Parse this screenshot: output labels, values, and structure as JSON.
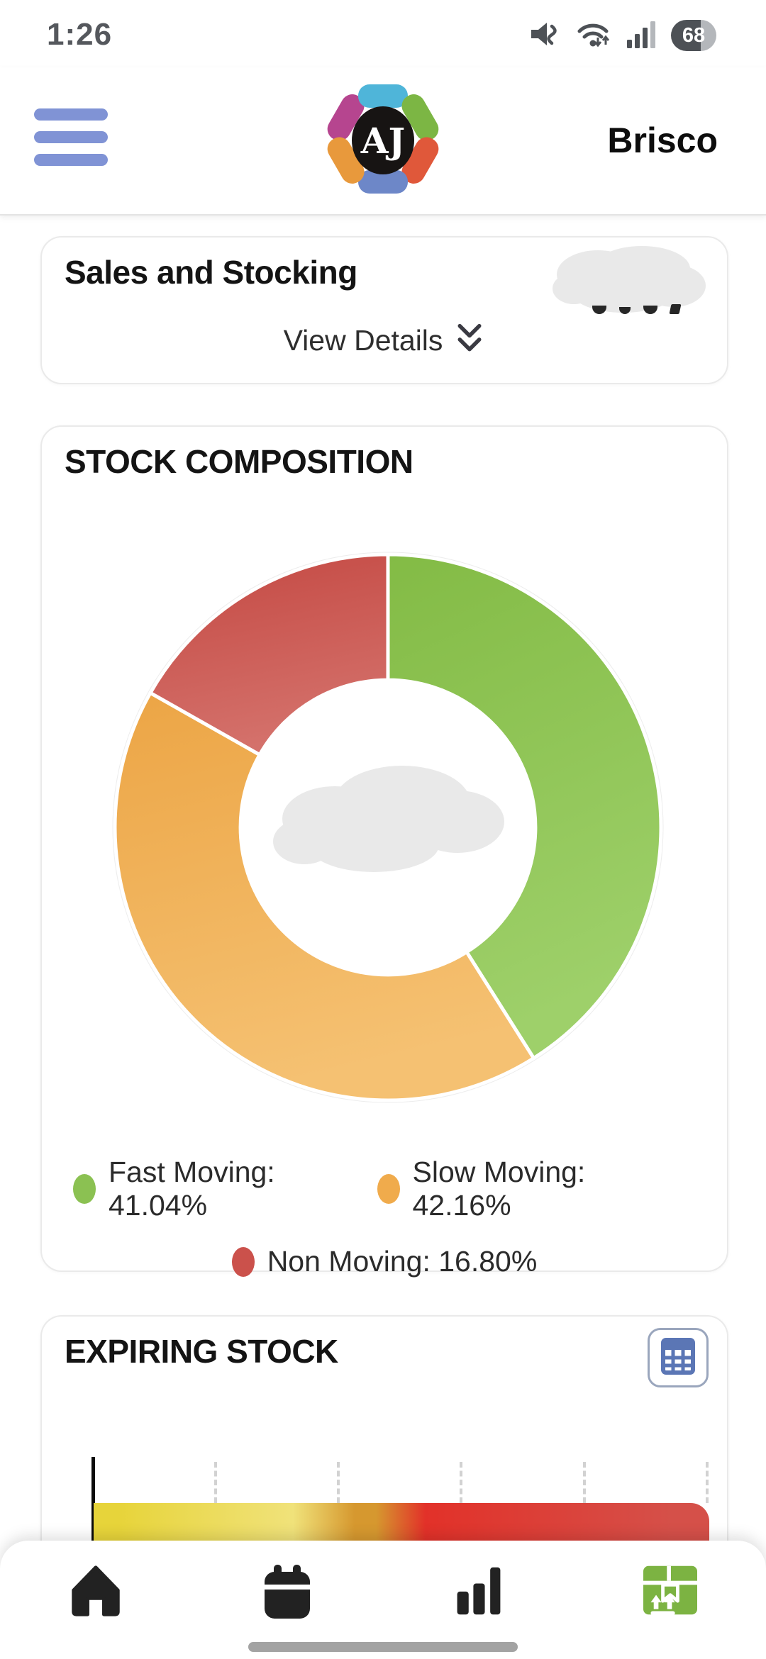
{
  "status_bar": {
    "time": "1:26",
    "battery_percent": "68",
    "icons": [
      "volume-muted",
      "wifi",
      "cell-signal",
      "battery"
    ]
  },
  "header": {
    "logo_monogram": "AJ",
    "account_name": "Brisco"
  },
  "sales_card": {
    "title": "Sales and Stocking",
    "view_details_label": "View Details",
    "value_redacted": true
  },
  "stock_card": {
    "title": "STOCK COMPOSITION",
    "legend": [
      "Fast Moving: 41.04%",
      "Slow Moving: 42.16%",
      "Non Moving: 16.80%"
    ],
    "center_redacted": true
  },
  "expiring_card": {
    "title": "EXPIRING STOCK"
  },
  "chart_data": [
    {
      "type": "pie",
      "subtype": "donut",
      "title": "STOCK COMPOSITION",
      "labels": [
        "Fast Moving",
        "Slow Moving",
        "Non Moving"
      ],
      "values": [
        41.04,
        42.16,
        16.8
      ],
      "unit": "%",
      "colors": [
        "#8bc152",
        "#f0ab4c",
        "#cb514b"
      ],
      "gradient_dark": [
        "#83bb45",
        "#eca545",
        "#c44842"
      ],
      "gradient_light": [
        "#9ed06a",
        "#f5c172",
        "#d4716b"
      ],
      "start_angle_deg": 0,
      "direction": "clockwise",
      "inner_radius_ratio": 0.54,
      "legend_position": "bottom",
      "center_label_redacted": true
    },
    {
      "type": "bar",
      "subtype": "horizontal-stacked",
      "title": "EXPIRING STOCK",
      "segments": [
        {
          "color": "#e7d43a",
          "color_light": "#f0e27a",
          "fraction": 0.384
        },
        {
          "color": "#d6982f",
          "fraction": 0.115
        },
        {
          "color": "#e23129",
          "color_light": "#d55049",
          "fraction": 0.501
        }
      ],
      "gridlines": 5,
      "axis_labels_visible": false,
      "value_labels_visible": false
    }
  ],
  "bottom_nav": {
    "items": [
      {
        "icon": "home"
      },
      {
        "icon": "calendar"
      },
      {
        "icon": "bar-chart"
      },
      {
        "icon": "package",
        "accent_color": "#7cb342"
      }
    ]
  }
}
